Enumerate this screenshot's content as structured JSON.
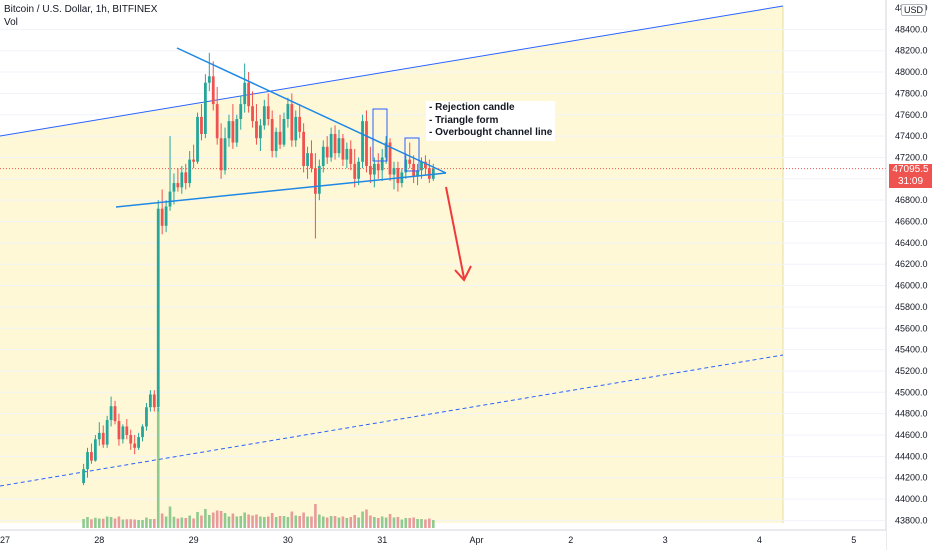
{
  "header": {
    "title": "Bitcoin / U.S. Dollar, 1h, BITFINEX",
    "vol_label": "Vol"
  },
  "currency_badge": "USD",
  "price_badge": {
    "price": "47095.5",
    "countdown": "31:09"
  },
  "annotation": {
    "lines": [
      "- Rejection candle",
      "- Triangle form",
      "- Overbought channel line"
    ]
  },
  "colors": {
    "up": "#26a69a",
    "down": "#ef5350",
    "vol_up": "#8fca8f",
    "vol_down": "#e99a9a",
    "channel": "#2962ff",
    "triangle": "#1e88e5",
    "arrow": "#ef3a3a",
    "zone_fill": "#fff8d6",
    "price_badge": "#ef5350"
  },
  "chart_data": {
    "type": "candlestick",
    "symbol": "Bitcoin / U.S. Dollar",
    "interval": "1h",
    "exchange": "BITFINEX",
    "y_axis": {
      "ticks": [
        48400,
        48200,
        48000,
        47800,
        47600,
        47400,
        47200,
        47000,
        46800,
        46600,
        46400,
        46200,
        46000,
        45800,
        45600,
        45400,
        45200,
        45000,
        44800,
        44600,
        44400,
        44200,
        44000,
        43800
      ],
      "top_tick_label": "48600.0",
      "range": [
        43780,
        48640
      ]
    },
    "x_axis": {
      "tick_labels": [
        "27",
        "28",
        "29",
        "30",
        "31",
        "Apr",
        "2",
        "3",
        "4",
        "5"
      ]
    },
    "last_price": 47095.5,
    "candles": [
      {
        "date": "2021-03-27T20:00",
        "o": 44150,
        "h": 44330,
        "l": 44130,
        "c": 44280
      },
      {
        "date": "2021-03-27T21:00",
        "o": 44280,
        "h": 44480,
        "l": 44200,
        "c": 44440
      },
      {
        "date": "2021-03-27T22:00",
        "o": 44440,
        "h": 44520,
        "l": 44330,
        "c": 44360
      },
      {
        "date": "2021-03-27T23:00",
        "o": 44360,
        "h": 44600,
        "l": 44350,
        "c": 44560
      },
      {
        "date": "2021-03-28T00:00",
        "o": 44560,
        "h": 44720,
        "l": 44500,
        "c": 44620
      },
      {
        "date": "2021-03-28T01:00",
        "o": 44620,
        "h": 44690,
        "l": 44480,
        "c": 44510
      },
      {
        "date": "2021-03-28T02:00",
        "o": 44510,
        "h": 44780,
        "l": 44480,
        "c": 44740
      },
      {
        "date": "2021-03-28T03:00",
        "o": 44740,
        "h": 44960,
        "l": 44680,
        "c": 44870
      },
      {
        "date": "2021-03-28T04:00",
        "o": 44870,
        "h": 44920,
        "l": 44700,
        "c": 44730
      },
      {
        "date": "2021-03-28T05:00",
        "o": 44730,
        "h": 44800,
        "l": 44500,
        "c": 44560
      },
      {
        "date": "2021-03-28T06:00",
        "o": 44560,
        "h": 44700,
        "l": 44520,
        "c": 44680
      },
      {
        "date": "2021-03-28T07:00",
        "o": 44680,
        "h": 44750,
        "l": 44560,
        "c": 44600
      },
      {
        "date": "2021-03-28T08:00",
        "o": 44600,
        "h": 44650,
        "l": 44460,
        "c": 44520
      },
      {
        "date": "2021-03-28T09:00",
        "o": 44520,
        "h": 44600,
        "l": 44420,
        "c": 44480
      },
      {
        "date": "2021-03-28T10:00",
        "o": 44480,
        "h": 44620,
        "l": 44460,
        "c": 44580
      },
      {
        "date": "2021-03-28T11:00",
        "o": 44580,
        "h": 44700,
        "l": 44540,
        "c": 44680
      },
      {
        "date": "2021-03-28T12:00",
        "o": 44680,
        "h": 44900,
        "l": 44640,
        "c": 44860
      },
      {
        "date": "2021-03-28T13:00",
        "o": 44860,
        "h": 45020,
        "l": 44820,
        "c": 44980
      },
      {
        "date": "2021-03-28T14:00",
        "o": 44980,
        "h": 45020,
        "l": 44820,
        "c": 44860
      },
      {
        "date": "2021-03-28T15:00",
        "o": 44860,
        "h": 46800,
        "l": 44820,
        "c": 46720
      },
      {
        "date": "2021-03-28T16:00",
        "o": 46720,
        "h": 46900,
        "l": 46480,
        "c": 46560
      },
      {
        "date": "2021-03-28T17:00",
        "o": 46560,
        "h": 46800,
        "l": 46500,
        "c": 46740
      },
      {
        "date": "2021-03-28T18:00",
        "o": 46740,
        "h": 47400,
        "l": 46700,
        "c": 46880
      },
      {
        "date": "2021-03-28T19:00",
        "o": 46880,
        "h": 47050,
        "l": 46760,
        "c": 46960
      },
      {
        "date": "2021-03-28T20:00",
        "o": 46960,
        "h": 47100,
        "l": 46880,
        "c": 46920
      },
      {
        "date": "2021-03-28T21:00",
        "o": 46920,
        "h": 47120,
        "l": 46860,
        "c": 47060
      },
      {
        "date": "2021-03-28T22:00",
        "o": 47060,
        "h": 47140,
        "l": 46900,
        "c": 46960
      },
      {
        "date": "2021-03-28T23:00",
        "o": 46960,
        "h": 47260,
        "l": 46920,
        "c": 47180
      },
      {
        "date": "2021-03-29T00:00",
        "o": 47180,
        "h": 47320,
        "l": 47100,
        "c": 47160
      },
      {
        "date": "2021-03-29T01:00",
        "o": 47160,
        "h": 47620,
        "l": 47140,
        "c": 47580
      },
      {
        "date": "2021-03-29T02:00",
        "o": 47580,
        "h": 47700,
        "l": 47360,
        "c": 47420
      },
      {
        "date": "2021-03-29T03:00",
        "o": 47420,
        "h": 47980,
        "l": 47380,
        "c": 47900
      },
      {
        "date": "2021-03-29T04:00",
        "o": 47900,
        "h": 48180,
        "l": 47820,
        "c": 47960
      },
      {
        "date": "2021-03-29T05:00",
        "o": 47960,
        "h": 48100,
        "l": 47640,
        "c": 47700
      },
      {
        "date": "2021-03-29T06:00",
        "o": 47700,
        "h": 47860,
        "l": 47320,
        "c": 47380
      },
      {
        "date": "2021-03-29T07:00",
        "o": 47380,
        "h": 47520,
        "l": 47000,
        "c": 47080
      },
      {
        "date": "2021-03-29T08:00",
        "o": 47080,
        "h": 47480,
        "l": 47040,
        "c": 47380
      },
      {
        "date": "2021-03-29T09:00",
        "o": 47380,
        "h": 47600,
        "l": 47300,
        "c": 47540
      },
      {
        "date": "2021-03-29T10:00",
        "o": 47540,
        "h": 47700,
        "l": 47280,
        "c": 47340
      },
      {
        "date": "2021-03-29T11:00",
        "o": 47340,
        "h": 47600,
        "l": 47300,
        "c": 47560
      },
      {
        "date": "2021-03-29T12:00",
        "o": 47560,
        "h": 47780,
        "l": 47460,
        "c": 47700
      },
      {
        "date": "2021-03-29T13:00",
        "o": 47700,
        "h": 48080,
        "l": 47620,
        "c": 47900
      },
      {
        "date": "2021-03-29T14:00",
        "o": 47900,
        "h": 48000,
        "l": 47620,
        "c": 47680
      },
      {
        "date": "2021-03-29T15:00",
        "o": 47680,
        "h": 47820,
        "l": 47480,
        "c": 47540
      },
      {
        "date": "2021-03-29T16:00",
        "o": 47540,
        "h": 47700,
        "l": 47320,
        "c": 47380
      },
      {
        "date": "2021-03-29T17:00",
        "o": 47380,
        "h": 47560,
        "l": 47260,
        "c": 47500
      },
      {
        "date": "2021-03-29T18:00",
        "o": 47500,
        "h": 47740,
        "l": 47460,
        "c": 47680
      },
      {
        "date": "2021-03-29T19:00",
        "o": 47680,
        "h": 47800,
        "l": 47500,
        "c": 47560
      },
      {
        "date": "2021-03-29T20:00",
        "o": 47560,
        "h": 47640,
        "l": 47200,
        "c": 47260
      },
      {
        "date": "2021-03-29T21:00",
        "o": 47260,
        "h": 47480,
        "l": 47200,
        "c": 47440
      },
      {
        "date": "2021-03-29T22:00",
        "o": 47440,
        "h": 47600,
        "l": 47280,
        "c": 47320
      },
      {
        "date": "2021-03-29T23:00",
        "o": 47320,
        "h": 47620,
        "l": 47300,
        "c": 47560
      },
      {
        "date": "2021-03-30T00:00",
        "o": 47560,
        "h": 47760,
        "l": 47480,
        "c": 47700
      },
      {
        "date": "2021-03-30T01:00",
        "o": 47700,
        "h": 47800,
        "l": 47300,
        "c": 47360
      },
      {
        "date": "2021-03-30T02:00",
        "o": 47360,
        "h": 47640,
        "l": 47300,
        "c": 47580
      },
      {
        "date": "2021-03-30T03:00",
        "o": 47580,
        "h": 47700,
        "l": 47380,
        "c": 47440
      },
      {
        "date": "2021-03-30T04:00",
        "o": 47440,
        "h": 47520,
        "l": 47060,
        "c": 47120
      },
      {
        "date": "2021-03-30T05:00",
        "o": 47120,
        "h": 47300,
        "l": 47000,
        "c": 47240
      },
      {
        "date": "2021-03-30T06:00",
        "o": 47240,
        "h": 47360,
        "l": 47060,
        "c": 47100
      },
      {
        "date": "2021-03-30T07:00",
        "o": 47100,
        "h": 47240,
        "l": 46440,
        "c": 46860
      },
      {
        "date": "2021-03-30T08:00",
        "o": 46860,
        "h": 47180,
        "l": 46800,
        "c": 47120
      },
      {
        "date": "2021-03-30T09:00",
        "o": 47120,
        "h": 47360,
        "l": 47060,
        "c": 47300
      },
      {
        "date": "2021-03-30T10:00",
        "o": 47300,
        "h": 47400,
        "l": 47140,
        "c": 47200
      },
      {
        "date": "2021-03-30T11:00",
        "o": 47200,
        "h": 47480,
        "l": 47160,
        "c": 47420
      },
      {
        "date": "2021-03-30T12:00",
        "o": 47420,
        "h": 47500,
        "l": 47180,
        "c": 47240
      },
      {
        "date": "2021-03-30T13:00",
        "o": 47240,
        "h": 47460,
        "l": 47200,
        "c": 47380
      },
      {
        "date": "2021-03-30T14:00",
        "o": 47380,
        "h": 47420,
        "l": 47120,
        "c": 47180
      },
      {
        "date": "2021-03-30T15:00",
        "o": 47180,
        "h": 47340,
        "l": 47100,
        "c": 47280
      },
      {
        "date": "2021-03-30T16:00",
        "o": 47280,
        "h": 47360,
        "l": 47080,
        "c": 47140
      },
      {
        "date": "2021-03-30T17:00",
        "o": 47140,
        "h": 47280,
        "l": 46920,
        "c": 47000
      },
      {
        "date": "2021-03-30T18:00",
        "o": 47000,
        "h": 47200,
        "l": 46940,
        "c": 47160
      },
      {
        "date": "2021-03-30T19:00",
        "o": 47160,
        "h": 47600,
        "l": 47100,
        "c": 47540
      },
      {
        "date": "2021-03-30T20:00",
        "o": 47540,
        "h": 47640,
        "l": 47060,
        "c": 47120
      },
      {
        "date": "2021-03-30T21:00",
        "o": 47120,
        "h": 47300,
        "l": 46960,
        "c": 47040
      },
      {
        "date": "2021-03-30T22:00",
        "o": 47040,
        "h": 47200,
        "l": 46920,
        "c": 47140
      },
      {
        "date": "2021-03-30T23:00",
        "o": 47140,
        "h": 47240,
        "l": 47000,
        "c": 47080
      },
      {
        "date": "2021-03-31T00:00",
        "o": 47080,
        "h": 47280,
        "l": 46980,
        "c": 47200
      },
      {
        "date": "2021-03-31T01:00",
        "o": 47200,
        "h": 47400,
        "l": 47140,
        "c": 47340
      },
      {
        "date": "2021-03-31T02:00",
        "o": 47340,
        "h": 47380,
        "l": 46980,
        "c": 47040
      },
      {
        "date": "2021-03-31T03:00",
        "o": 47040,
        "h": 47160,
        "l": 46900,
        "c": 47100
      },
      {
        "date": "2021-03-31T04:00",
        "o": 47100,
        "h": 47160,
        "l": 46880,
        "c": 46960
      },
      {
        "date": "2021-03-31T05:00",
        "o": 46960,
        "h": 47100,
        "l": 46920,
        "c": 47060
      },
      {
        "date": "2021-03-31T06:00",
        "o": 47060,
        "h": 47240,
        "l": 47000,
        "c": 47180
      },
      {
        "date": "2021-03-31T07:00",
        "o": 47180,
        "h": 47340,
        "l": 47100,
        "c": 47140
      },
      {
        "date": "2021-03-31T08:00",
        "o": 47140,
        "h": 47220,
        "l": 46960,
        "c": 47020
      },
      {
        "date": "2021-03-31T09:00",
        "o": 47020,
        "h": 47140,
        "l": 46940,
        "c": 47080
      },
      {
        "date": "2021-03-31T10:00",
        "o": 47080,
        "h": 47200,
        "l": 47000,
        "c": 47160
      },
      {
        "date": "2021-03-31T11:00",
        "o": 47160,
        "h": 47220,
        "l": 47040,
        "c": 47100
      },
      {
        "date": "2021-03-31T12:00",
        "o": 47100,
        "h": 47180,
        "l": 46960,
        "c": 47000
      },
      {
        "date": "2021-03-31T13:00",
        "o": 47000,
        "h": 47140,
        "l": 46980,
        "c": 47095.5
      }
    ]
  }
}
